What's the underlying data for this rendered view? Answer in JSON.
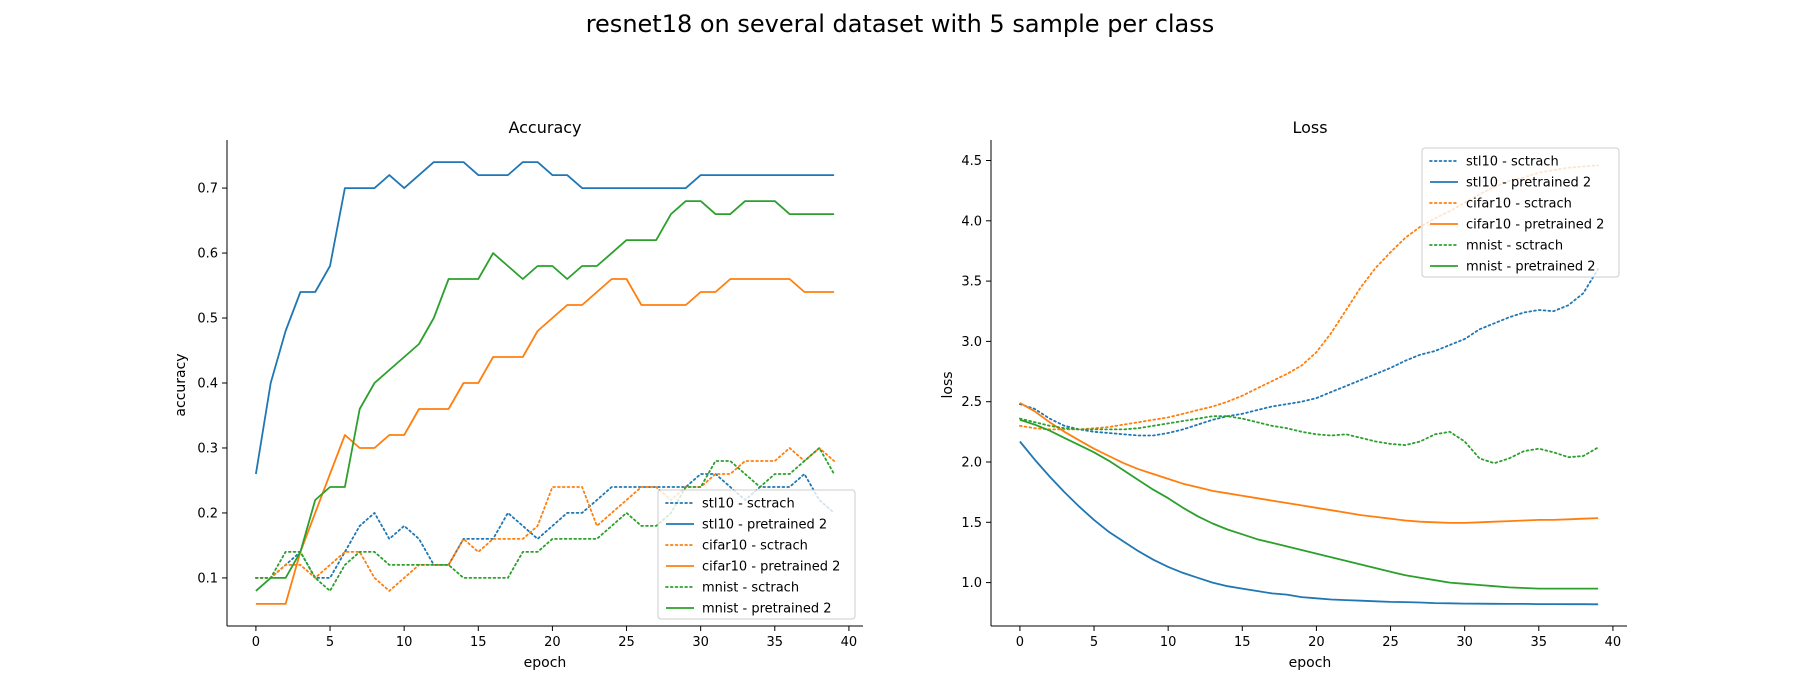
{
  "suptitle": "resnet18 on several dataset with 5 sample per class",
  "colors": {
    "stl10": "#1f77b4",
    "cifar10": "#ff7f0e",
    "mnist": "#2ca02c"
  },
  "chart_data": [
    {
      "type": "line",
      "title": "Accuracy",
      "xlabel": "epoch",
      "ylabel": "accuracy",
      "xlim": [
        -1.95,
        40.95
      ],
      "ylim": [
        0.026,
        0.774
      ],
      "xticks": [
        0,
        5,
        10,
        15,
        20,
        25,
        30,
        35,
        40
      ],
      "yticks": [
        0.1,
        0.2,
        0.3,
        0.4,
        0.5,
        0.6,
        0.7
      ],
      "grid": false,
      "legend_loc": "lower right",
      "series": [
        {
          "name": "stl10 - sctrach",
          "color": "#1f77b4",
          "dash": "dotted",
          "values": [
            0.1,
            0.1,
            0.12,
            0.14,
            0.1,
            0.1,
            0.14,
            0.18,
            0.2,
            0.16,
            0.18,
            0.16,
            0.12,
            0.12,
            0.16,
            0.16,
            0.16,
            0.2,
            0.18,
            0.16,
            0.18,
            0.2,
            0.2,
            0.22,
            0.24,
            0.24,
            0.24,
            0.24,
            0.24,
            0.24,
            0.26,
            0.26,
            0.24,
            0.22,
            0.24,
            0.24,
            0.24,
            0.26,
            0.22,
            0.2
          ]
        },
        {
          "name": "stl10 - pretrained 2",
          "color": "#1f77b4",
          "dash": "solid",
          "values": [
            0.26,
            0.4,
            0.48,
            0.54,
            0.54,
            0.58,
            0.7,
            0.7,
            0.7,
            0.72,
            0.7,
            0.72,
            0.74,
            0.74,
            0.74,
            0.72,
            0.72,
            0.72,
            0.74,
            0.74,
            0.72,
            0.72,
            0.7,
            0.7,
            0.7,
            0.7,
            0.7,
            0.7,
            0.7,
            0.7,
            0.72,
            0.72,
            0.72,
            0.72,
            0.72,
            0.72,
            0.72,
            0.72,
            0.72,
            0.72
          ]
        },
        {
          "name": "cifar10 - sctrach",
          "color": "#ff7f0e",
          "dash": "dotted",
          "values": [
            0.1,
            0.1,
            0.12,
            0.12,
            0.1,
            0.12,
            0.14,
            0.14,
            0.1,
            0.08,
            0.1,
            0.12,
            0.12,
            0.12,
            0.16,
            0.14,
            0.16,
            0.16,
            0.16,
            0.18,
            0.24,
            0.24,
            0.24,
            0.18,
            0.2,
            0.22,
            0.24,
            0.24,
            0.22,
            0.24,
            0.24,
            0.26,
            0.26,
            0.28,
            0.28,
            0.28,
            0.3,
            0.28,
            0.3,
            0.28
          ]
        },
        {
          "name": "cifar10 - pretrained 2",
          "color": "#ff7f0e",
          "dash": "solid",
          "values": [
            0.06,
            0.06,
            0.06,
            0.14,
            0.2,
            0.26,
            0.32,
            0.3,
            0.3,
            0.32,
            0.32,
            0.36,
            0.36,
            0.36,
            0.4,
            0.4,
            0.44,
            0.44,
            0.44,
            0.48,
            0.5,
            0.52,
            0.52,
            0.54,
            0.56,
            0.56,
            0.52,
            0.52,
            0.52,
            0.52,
            0.54,
            0.54,
            0.56,
            0.56,
            0.56,
            0.56,
            0.56,
            0.54,
            0.54,
            0.54
          ]
        },
        {
          "name": "mnist - sctrach",
          "color": "#2ca02c",
          "dash": "dotted",
          "values": [
            0.1,
            0.1,
            0.14,
            0.14,
            0.1,
            0.08,
            0.12,
            0.14,
            0.14,
            0.12,
            0.12,
            0.12,
            0.12,
            0.12,
            0.1,
            0.1,
            0.1,
            0.1,
            0.14,
            0.14,
            0.16,
            0.16,
            0.16,
            0.16,
            0.18,
            0.2,
            0.18,
            0.18,
            0.2,
            0.24,
            0.24,
            0.28,
            0.28,
            0.26,
            0.24,
            0.26,
            0.26,
            0.28,
            0.3,
            0.26
          ]
        },
        {
          "name": "mnist - pretrained 2",
          "color": "#2ca02c",
          "dash": "solid",
          "values": [
            0.08,
            0.1,
            0.1,
            0.14,
            0.22,
            0.24,
            0.24,
            0.36,
            0.4,
            0.42,
            0.44,
            0.46,
            0.5,
            0.56,
            0.56,
            0.56,
            0.6,
            0.58,
            0.56,
            0.58,
            0.58,
            0.56,
            0.58,
            0.58,
            0.6,
            0.62,
            0.62,
            0.62,
            0.66,
            0.68,
            0.68,
            0.66,
            0.66,
            0.68,
            0.68,
            0.68,
            0.66,
            0.66,
            0.66,
            0.66
          ]
        }
      ]
    },
    {
      "type": "line",
      "title": "Loss",
      "xlabel": "epoch",
      "ylabel": "loss",
      "xlim": [
        -1.95,
        40.95
      ],
      "ylim": [
        0.64,
        4.67
      ],
      "xticks": [
        0,
        5,
        10,
        15,
        20,
        25,
        30,
        35,
        40
      ],
      "yticks": [
        1.0,
        1.5,
        2.0,
        2.5,
        3.0,
        3.5,
        4.0,
        4.5
      ],
      "grid": false,
      "legend_loc": "upper right",
      "series": [
        {
          "name": "stl10 - sctrach",
          "color": "#1f77b4",
          "dash": "dotted",
          "values": [
            2.48,
            2.44,
            2.36,
            2.3,
            2.27,
            2.25,
            2.24,
            2.23,
            2.22,
            2.22,
            2.24,
            2.27,
            2.31,
            2.35,
            2.38,
            2.4,
            2.43,
            2.46,
            2.48,
            2.5,
            2.53,
            2.58,
            2.63,
            2.68,
            2.73,
            2.78,
            2.84,
            2.89,
            2.92,
            2.97,
            3.02,
            3.1,
            3.15,
            3.2,
            3.24,
            3.26,
            3.25,
            3.3,
            3.4,
            3.6
          ]
        },
        {
          "name": "stl10 - pretrained 2",
          "color": "#1f77b4",
          "dash": "solid",
          "values": [
            2.17,
            2.02,
            1.88,
            1.75,
            1.63,
            1.52,
            1.42,
            1.34,
            1.26,
            1.19,
            1.13,
            1.08,
            1.04,
            1.0,
            0.97,
            0.95,
            0.93,
            0.91,
            0.9,
            0.88,
            0.87,
            0.86,
            0.855,
            0.85,
            0.845,
            0.84,
            0.838,
            0.835,
            0.83,
            0.828,
            0.826,
            0.825,
            0.824,
            0.823,
            0.823,
            0.822,
            0.822,
            0.821,
            0.821,
            0.82
          ]
        },
        {
          "name": "cifar10 - sctrach",
          "color": "#ff7f0e",
          "dash": "dotted",
          "values": [
            2.3,
            2.28,
            2.27,
            2.27,
            2.27,
            2.28,
            2.29,
            2.31,
            2.33,
            2.35,
            2.37,
            2.4,
            2.43,
            2.46,
            2.5,
            2.55,
            2.61,
            2.67,
            2.73,
            2.8,
            2.91,
            3.07,
            3.26,
            3.45,
            3.61,
            3.74,
            3.86,
            3.95,
            4.02,
            4.08,
            4.15,
            4.22,
            4.28,
            4.33,
            4.36,
            4.4,
            4.42,
            4.44,
            4.45,
            4.46
          ]
        },
        {
          "name": "cifar10 - pretrained 2",
          "color": "#ff7f0e",
          "dash": "solid",
          "values": [
            2.49,
            2.42,
            2.33,
            2.25,
            2.18,
            2.11,
            2.05,
            1.99,
            1.94,
            1.9,
            1.86,
            1.82,
            1.79,
            1.76,
            1.74,
            1.72,
            1.7,
            1.68,
            1.66,
            1.64,
            1.62,
            1.6,
            1.58,
            1.56,
            1.545,
            1.53,
            1.515,
            1.505,
            1.5,
            1.495,
            1.495,
            1.5,
            1.505,
            1.51,
            1.515,
            1.52,
            1.52,
            1.525,
            1.53,
            1.535
          ]
        },
        {
          "name": "mnist - sctrach",
          "color": "#2ca02c",
          "dash": "dotted",
          "values": [
            2.36,
            2.33,
            2.3,
            2.28,
            2.27,
            2.27,
            2.27,
            2.27,
            2.28,
            2.3,
            2.32,
            2.34,
            2.36,
            2.38,
            2.38,
            2.36,
            2.33,
            2.3,
            2.28,
            2.25,
            2.23,
            2.22,
            2.23,
            2.2,
            2.17,
            2.15,
            2.14,
            2.17,
            2.23,
            2.25,
            2.17,
            2.03,
            1.99,
            2.03,
            2.09,
            2.11,
            2.08,
            2.04,
            2.05,
            2.12
          ]
        },
        {
          "name": "mnist - pretrained 2",
          "color": "#2ca02c",
          "dash": "solid",
          "values": [
            2.35,
            2.31,
            2.26,
            2.2,
            2.14,
            2.08,
            2.01,
            1.93,
            1.85,
            1.77,
            1.7,
            1.62,
            1.55,
            1.49,
            1.44,
            1.4,
            1.36,
            1.33,
            1.3,
            1.27,
            1.24,
            1.21,
            1.18,
            1.15,
            1.12,
            1.09,
            1.06,
            1.04,
            1.02,
            1.0,
            0.99,
            0.98,
            0.97,
            0.96,
            0.955,
            0.95,
            0.95,
            0.95,
            0.95,
            0.95
          ]
        }
      ]
    }
  ]
}
